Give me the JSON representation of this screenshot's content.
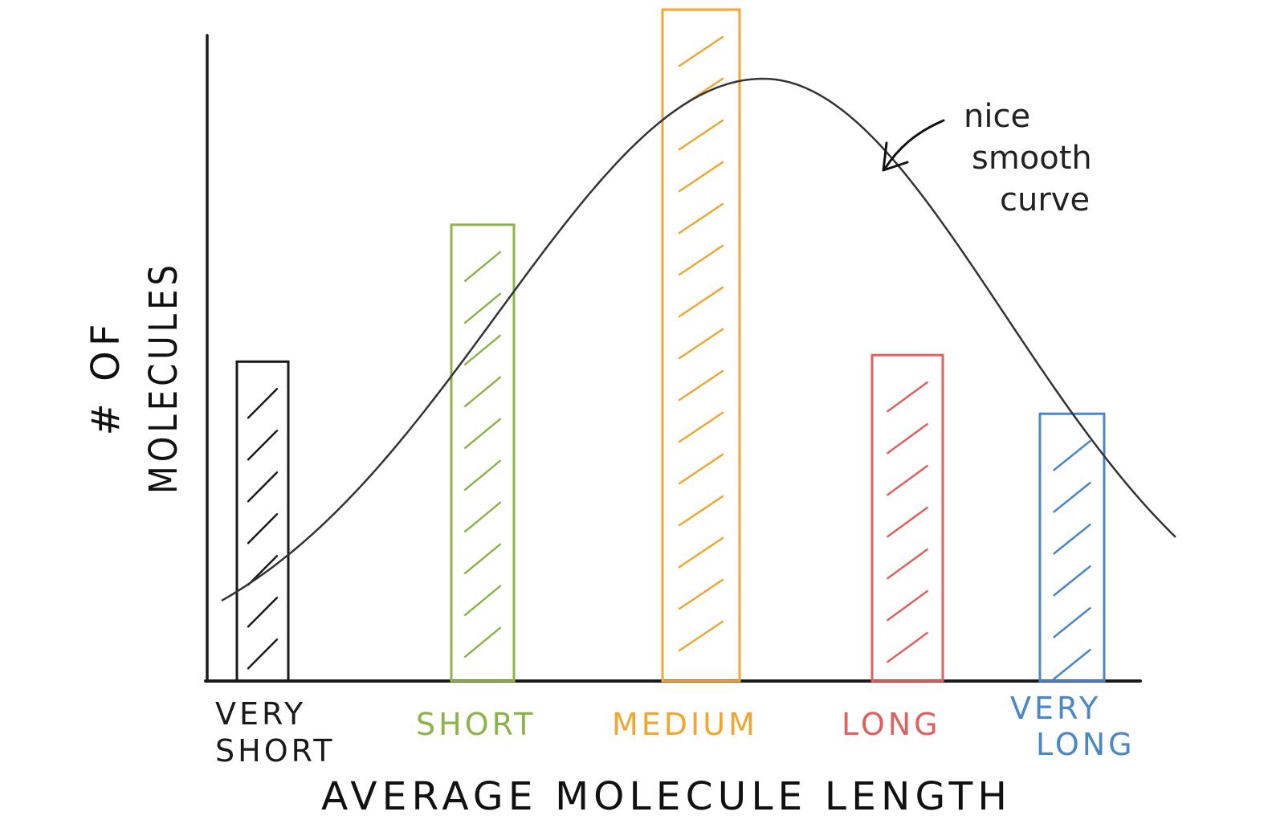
{
  "chart_data": {
    "type": "bar",
    "title": "",
    "xlabel": "AVERAGE MOLECULE LENGTH",
    "ylabel_lines": [
      "# OF",
      "MOLECULES"
    ],
    "categories": [
      {
        "lines": [
          "VERY",
          "SHORT"
        ],
        "color": "#1a1a1a"
      },
      {
        "lines": [
          "SHORT"
        ],
        "color": "#8db34a"
      },
      {
        "lines": [
          "MEDIUM"
        ],
        "color": "#f0a630"
      },
      {
        "lines": [
          "LONG"
        ],
        "color": "#e06060"
      },
      {
        "lines": [
          "VERY",
          "LONG"
        ],
        "color": "#4a86c8"
      }
    ],
    "values": [
      49,
      70,
      103,
      50,
      41
    ],
    "ylim": [
      0,
      103
    ],
    "grid": false,
    "legend": "none",
    "curve": {
      "description_lines": [
        "nice",
        "smooth",
        "curve"
      ],
      "peak_category_index": 2.3
    }
  }
}
